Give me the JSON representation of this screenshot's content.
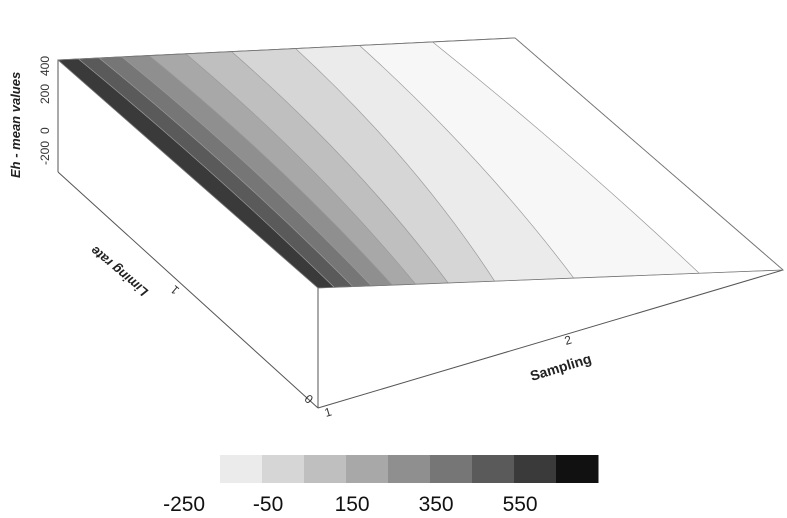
{
  "chart_data": {
    "type": "surface-3d-contour",
    "title": "",
    "zlabel": "Eh - mean values",
    "xlabel": "Sampling",
    "ylabel": "Liming rate",
    "z_ticks": [
      "400",
      "200",
      "0",
      "-200"
    ],
    "x_ticks": [
      "1",
      "2"
    ],
    "y_ticks": [
      "0",
      "1"
    ],
    "z_range": [
      -250,
      450
    ],
    "legend": {
      "levels": [
        -250,
        -150,
        -50,
        50,
        150,
        250,
        350,
        450,
        550,
        650
      ],
      "labels": [
        "-250",
        "-50",
        "150",
        "350",
        "550"
      ],
      "colors": [
        "#ffffff",
        "#ebebeb",
        "#d6d6d6",
        "#bfbfbf",
        "#a8a8a8",
        "#8f8f8f",
        "#767676",
        "#5a5a5a",
        "#3a3a3a",
        "#111111"
      ]
    },
    "surface": {
      "description_free": true,
      "band_colors": [
        "#3a3a3a",
        "#5a5a5a",
        "#767676",
        "#8f8f8f",
        "#a8a8a8",
        "#bfbfbf",
        "#d6d6d6",
        "#ebebeb",
        "#f7f7f7",
        "#ffffff"
      ]
    }
  }
}
